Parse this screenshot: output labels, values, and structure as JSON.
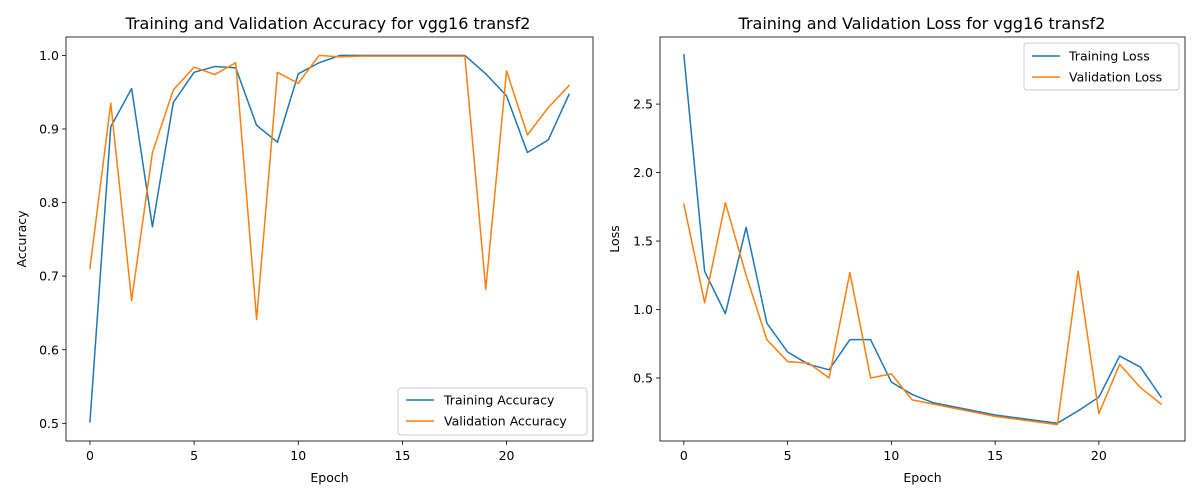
{
  "chart_data": [
    {
      "type": "line",
      "title": "Training and Validation Accuracy for vgg16 transf2",
      "xlabel": "Epoch",
      "ylabel": "Accuracy",
      "xlim": [
        -1.15,
        24.15
      ],
      "ylim": [
        0.476,
        1.025
      ],
      "xticks": [
        0,
        5,
        10,
        15,
        20
      ],
      "yticks": [
        0.5,
        0.6,
        0.7,
        0.8,
        0.9,
        1.0
      ],
      "ytick_labels": [
        "0.5",
        "0.6",
        "0.7",
        "0.8",
        "0.9",
        "1.0"
      ],
      "grid": false,
      "legend": "lower right",
      "x": [
        0,
        1,
        2,
        3,
        4,
        5,
        6,
        7,
        8,
        9,
        10,
        11,
        12,
        13,
        14,
        15,
        16,
        17,
        18,
        19,
        20,
        21,
        22,
        23
      ],
      "series": [
        {
          "name": "Training Accuracy",
          "color": "#1f77b4",
          "values": [
            0.502,
            0.903,
            0.955,
            0.767,
            0.936,
            0.977,
            0.985,
            0.983,
            0.905,
            0.882,
            0.975,
            0.99,
            1.0,
            1.0,
            1.0,
            1.0,
            1.0,
            1.0,
            1.0,
            0.975,
            0.945,
            0.868,
            0.885,
            0.947
          ]
        },
        {
          "name": "Validation Accuracy",
          "color": "#ff7f0e",
          "values": [
            0.711,
            0.935,
            0.667,
            0.868,
            0.953,
            0.984,
            0.974,
            0.99,
            0.641,
            0.977,
            0.962,
            1.0,
            0.998,
            0.999,
            0.999,
            0.999,
            0.999,
            0.999,
            0.999,
            0.682,
            0.979,
            0.892,
            0.929,
            0.959
          ]
        }
      ]
    },
    {
      "type": "line",
      "title": "Training and Validation Loss for vgg16 transf2",
      "xlabel": "Epoch",
      "ylabel": "Loss",
      "xlim": [
        -1.15,
        24.15
      ],
      "ylim": [
        0.04,
        2.99
      ],
      "xticks": [
        0,
        5,
        10,
        15,
        20
      ],
      "yticks": [
        0.5,
        1.0,
        1.5,
        2.0,
        2.5
      ],
      "ytick_labels": [
        "0.5",
        "1.0",
        "1.5",
        "2.0",
        "2.5"
      ],
      "grid": false,
      "legend": "upper right",
      "x": [
        0,
        1,
        2,
        3,
        4,
        5,
        6,
        7,
        8,
        9,
        10,
        11,
        12,
        13,
        14,
        15,
        16,
        17,
        18,
        19,
        20,
        21,
        22,
        23
      ],
      "series": [
        {
          "name": "Training Loss",
          "color": "#1f77b4",
          "values": [
            2.86,
            1.28,
            0.97,
            1.6,
            0.9,
            0.69,
            0.6,
            0.56,
            0.78,
            0.78,
            0.47,
            0.38,
            0.32,
            0.29,
            0.26,
            0.23,
            0.21,
            0.19,
            0.17,
            0.26,
            0.36,
            0.66,
            0.58,
            0.36
          ]
        },
        {
          "name": "Validation Loss",
          "color": "#ff7f0e",
          "values": [
            1.77,
            1.05,
            1.78,
            1.25,
            0.78,
            0.62,
            0.61,
            0.5,
            1.27,
            0.5,
            0.53,
            0.34,
            0.31,
            0.28,
            0.25,
            0.22,
            0.2,
            0.18,
            0.16,
            1.28,
            0.24,
            0.6,
            0.43,
            0.31
          ]
        }
      ]
    }
  ]
}
